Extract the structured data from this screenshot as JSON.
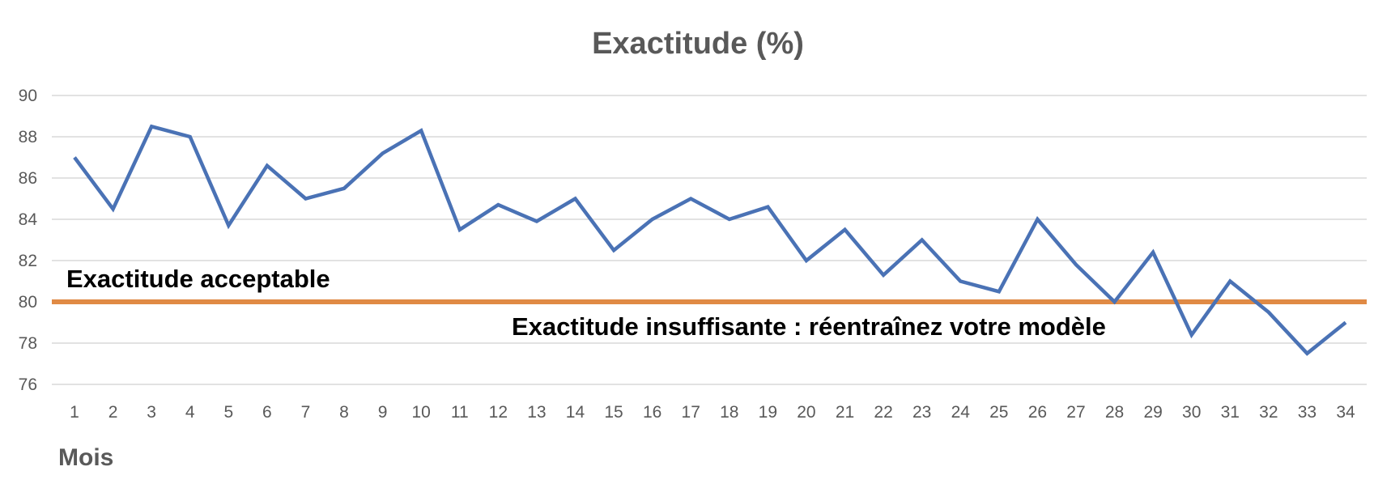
{
  "chart_data": {
    "type": "line",
    "title": "Exactitude (%)",
    "xlabel": "Mois",
    "ylabel": "",
    "categories": [
      "1",
      "2",
      "3",
      "4",
      "5",
      "6",
      "7",
      "8",
      "9",
      "10",
      "11",
      "12",
      "13",
      "14",
      "15",
      "16",
      "17",
      "18",
      "19",
      "20",
      "21",
      "22",
      "23",
      "24",
      "25",
      "26",
      "27",
      "28",
      "29",
      "30",
      "31",
      "32",
      "33",
      "34"
    ],
    "series": [
      {
        "values": [
          87.0,
          84.5,
          88.5,
          88.0,
          83.7,
          86.6,
          85.0,
          85.5,
          87.2,
          88.3,
          83.5,
          84.7,
          83.9,
          85.0,
          82.5,
          84.0,
          85.0,
          84.0,
          84.6,
          82.0,
          83.5,
          81.3,
          83.0,
          81.0,
          80.5,
          84.0,
          81.8,
          80.0,
          82.4,
          78.4,
          81.0,
          79.5,
          77.5,
          79.0
        ],
        "color": "#4a72b5"
      }
    ],
    "yticks": [
      76,
      78,
      80,
      82,
      84,
      86,
      88,
      90
    ],
    "ylim": [
      75.5,
      91
    ],
    "threshold": {
      "value": 80,
      "color": "#e08a45"
    },
    "annotations": {
      "above": "Exactitude acceptable",
      "below": "Exactitude insuffisante : réentraînez votre modèle"
    },
    "grid": true,
    "legend": "none"
  }
}
